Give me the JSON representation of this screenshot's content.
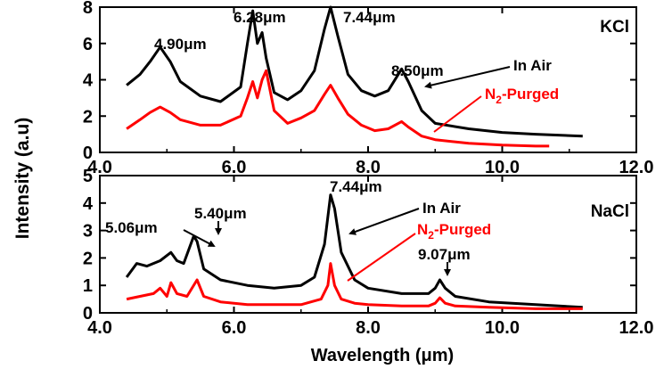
{
  "figure": {
    "ylabel": "Intensity (a.u)",
    "xlabel": "Wavelength (μm)"
  },
  "chart_data": [
    {
      "type": "line",
      "panel": "top",
      "tag": "KCl",
      "xlim": [
        4.0,
        12.0
      ],
      "ylim": [
        0,
        8
      ],
      "xticks": [
        "4.0",
        "6.0",
        "8.0",
        "10.0",
        "12.0"
      ],
      "yticks": [
        "0",
        "2",
        "4",
        "6",
        "8"
      ],
      "series": [
        {
          "name": "In Air",
          "color": "#000000",
          "x": [
            4.4,
            4.6,
            4.75,
            4.9,
            5.05,
            5.2,
            5.5,
            5.8,
            6.1,
            6.2,
            6.28,
            6.35,
            6.42,
            6.48,
            6.6,
            6.8,
            7.0,
            7.2,
            7.35,
            7.44,
            7.55,
            7.7,
            7.9,
            8.1,
            8.3,
            8.45,
            8.5,
            8.6,
            8.8,
            9.0,
            9.5,
            10.0,
            10.5,
            11.2
          ],
          "y": [
            3.7,
            4.3,
            5.0,
            5.8,
            5.0,
            3.9,
            3.1,
            2.8,
            3.6,
            6.0,
            7.8,
            6.0,
            6.6,
            5.2,
            3.3,
            2.9,
            3.4,
            4.5,
            6.8,
            8.0,
            6.4,
            4.3,
            3.4,
            3.1,
            3.4,
            4.3,
            4.6,
            3.9,
            2.3,
            1.6,
            1.3,
            1.1,
            1.0,
            0.9
          ]
        },
        {
          "name": "N₂-Purged",
          "color": "#ff0000",
          "x": [
            4.4,
            4.6,
            4.75,
            4.9,
            5.05,
            5.2,
            5.5,
            5.8,
            6.1,
            6.2,
            6.28,
            6.35,
            6.42,
            6.48,
            6.6,
            6.8,
            7.0,
            7.2,
            7.35,
            7.44,
            7.55,
            7.7,
            7.9,
            8.1,
            8.3,
            8.45,
            8.5,
            8.6,
            8.8,
            9.0,
            9.5,
            10.0,
            10.5,
            10.7
          ],
          "y": [
            1.3,
            1.8,
            2.2,
            2.5,
            2.2,
            1.8,
            1.5,
            1.5,
            2.0,
            3.0,
            3.9,
            3.0,
            4.0,
            4.5,
            2.3,
            1.6,
            1.9,
            2.3,
            3.2,
            3.7,
            3.0,
            2.1,
            1.5,
            1.2,
            1.3,
            1.6,
            1.7,
            1.4,
            0.9,
            0.7,
            0.5,
            0.4,
            0.35,
            0.35
          ]
        }
      ],
      "annotations": [
        "4.90μm",
        "6.28μm",
        "7.44μm",
        "8.50μm",
        "In Air",
        "N₂-Purged"
      ]
    },
    {
      "type": "line",
      "panel": "bottom",
      "tag": "NaCl",
      "xlim": [
        4.0,
        12.0
      ],
      "ylim": [
        0,
        5
      ],
      "xticks": [
        "4.0",
        "6.0",
        "8.0",
        "10.0",
        "12.0"
      ],
      "yticks": [
        "0",
        "1",
        "2",
        "3",
        "4",
        "5"
      ],
      "series": [
        {
          "name": "In Air",
          "color": "#000000",
          "x": [
            4.4,
            4.55,
            4.7,
            4.9,
            5.06,
            5.15,
            5.25,
            5.4,
            5.45,
            5.55,
            5.8,
            6.2,
            6.6,
            7.0,
            7.2,
            7.35,
            7.44,
            7.5,
            7.6,
            7.8,
            8.0,
            8.5,
            8.9,
            9.0,
            9.07,
            9.15,
            9.3,
            9.8,
            10.5,
            11.2
          ],
          "y": [
            1.3,
            1.8,
            1.7,
            1.9,
            2.2,
            1.9,
            1.8,
            2.8,
            2.6,
            1.6,
            1.2,
            1.0,
            0.9,
            1.0,
            1.3,
            2.5,
            4.3,
            3.8,
            2.2,
            1.2,
            0.9,
            0.7,
            0.7,
            0.9,
            1.2,
            0.9,
            0.6,
            0.4,
            0.3,
            0.2
          ]
        },
        {
          "name": "N₂-Purged",
          "color": "#ff0000",
          "x": [
            4.4,
            4.6,
            4.8,
            4.9,
            5.0,
            5.06,
            5.15,
            5.3,
            5.45,
            5.55,
            5.8,
            6.2,
            6.6,
            7.0,
            7.3,
            7.4,
            7.44,
            7.5,
            7.6,
            7.8,
            8.0,
            8.5,
            8.9,
            9.0,
            9.07,
            9.15,
            9.3,
            9.8,
            10.5,
            11.2
          ],
          "y": [
            0.5,
            0.6,
            0.7,
            0.9,
            0.6,
            1.1,
            0.7,
            0.6,
            1.2,
            0.6,
            0.4,
            0.3,
            0.3,
            0.3,
            0.5,
            1.0,
            1.8,
            1.0,
            0.5,
            0.35,
            0.3,
            0.25,
            0.25,
            0.35,
            0.55,
            0.35,
            0.25,
            0.2,
            0.15,
            0.15
          ]
        }
      ],
      "annotations": [
        "5.06μm",
        "5.40μm",
        "7.44μm",
        "9.07μm",
        "In Air",
        "N₂-Purged"
      ]
    }
  ]
}
